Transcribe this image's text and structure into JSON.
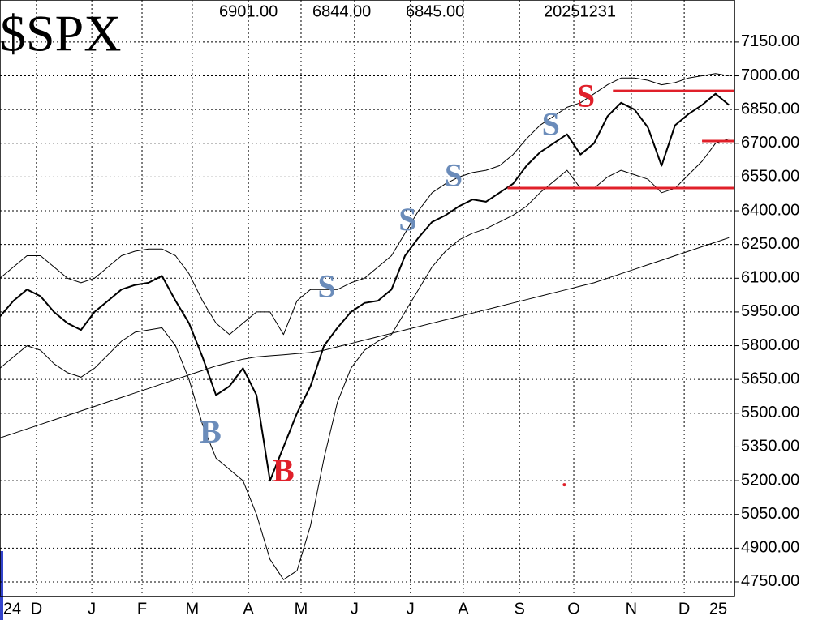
{
  "chart_data": {
    "type": "line",
    "title": "$SPX",
    "header_values": [
      "6901.00",
      "6844.00",
      "6845.00"
    ],
    "date": "20251231",
    "x": [
      0,
      5,
      10,
      15,
      20,
      25,
      30,
      35,
      40,
      45,
      50,
      55,
      60,
      65,
      70,
      75,
      80,
      85,
      90,
      95,
      100,
      105,
      110,
      115,
      120,
      125,
      130,
      135,
      140,
      145,
      150,
      155,
      160,
      165,
      170,
      175,
      180,
      185,
      190,
      195,
      200,
      205,
      210,
      215,
      220,
      225,
      230,
      235,
      240,
      245,
      250,
      255,
      260,
      265,
      270
    ],
    "xlim": [
      0,
      272
    ],
    "xticks": [
      {
        "value": 13.5,
        "label": "D"
      },
      {
        "value": 34,
        "label": "J"
      },
      {
        "value": 52.6,
        "label": "F"
      },
      {
        "value": 71.2,
        "label": "M"
      },
      {
        "value": 92,
        "label": "A"
      },
      {
        "value": 111.5,
        "label": "M"
      },
      {
        "value": 131.3,
        "label": "J"
      },
      {
        "value": 152,
        "label": "J"
      },
      {
        "value": 171.6,
        "label": "A"
      },
      {
        "value": 192.4,
        "label": "S"
      },
      {
        "value": 212.5,
        "label": "O"
      },
      {
        "value": 233.8,
        "label": "N"
      },
      {
        "value": 253.4,
        "label": "D"
      }
    ],
    "year_labels": [
      {
        "value": 4.5,
        "label": "24"
      },
      {
        "value": 266,
        "label": "25"
      }
    ],
    "ylim": [
      4685,
      7337
    ],
    "yticks": [
      {
        "value": 4750,
        "label": "4750.00"
      },
      {
        "value": 4900,
        "label": "4900.00"
      },
      {
        "value": 5050,
        "label": "5050.00"
      },
      {
        "value": 5200,
        "label": "5200.00"
      },
      {
        "value": 5350,
        "label": "5350.00"
      },
      {
        "value": 5500,
        "label": "5500.00"
      },
      {
        "value": 5650,
        "label": "5650.00"
      },
      {
        "value": 5800,
        "label": "5800.00"
      },
      {
        "value": 5950,
        "label": "5950.00"
      },
      {
        "value": 6100,
        "label": "6100.00"
      },
      {
        "value": 6250,
        "label": "6250.00"
      },
      {
        "value": 6400,
        "label": "6400.00"
      },
      {
        "value": 6550,
        "label": "6550.00"
      },
      {
        "value": 6700,
        "label": "6700.00"
      },
      {
        "value": 6850,
        "label": "6850.00"
      },
      {
        "value": 7000,
        "label": "7000.00"
      },
      {
        "value": 7150,
        "label": "7150.00"
      }
    ],
    "grid": true,
    "series": [
      {
        "color": "#000000",
        "width": 2,
        "values": [
          5930,
          6000,
          6050,
          6020,
          5950,
          5900,
          5870,
          5950,
          6000,
          6050,
          6070,
          6080,
          6110,
          6000,
          5900,
          5750,
          5580,
          5620,
          5700,
          5580,
          5200,
          5350,
          5500,
          5620,
          5800,
          5880,
          5950,
          5990,
          6000,
          6050,
          6200,
          6280,
          6350,
          6380,
          6420,
          6450,
          6440,
          6480,
          6520,
          6600,
          6660,
          6700,
          6740,
          6650,
          6700,
          6820,
          6880,
          6850,
          6770,
          6600,
          6780,
          6830,
          6870,
          6920,
          6870
        ]
      },
      {
        "color": "#000000",
        "width": 1,
        "values": [
          6100,
          6150,
          6200,
          6200,
          6150,
          6100,
          6080,
          6100,
          6150,
          6200,
          6220,
          6230,
          6230,
          6200,
          6120,
          6000,
          5900,
          5850,
          5900,
          5950,
          5950,
          5850,
          6000,
          6050,
          6050,
          6050,
          6080,
          6100,
          6150,
          6200,
          6300,
          6400,
          6480,
          6520,
          6550,
          6570,
          6580,
          6600,
          6650,
          6720,
          6780,
          6820,
          6860,
          6880,
          6920,
          6960,
          6990,
          6990,
          6980,
          6960,
          6970,
          6990,
          7000,
          7010,
          7000
        ]
      },
      {
        "color": "#000000",
        "width": 1,
        "values": [
          5700,
          5750,
          5800,
          5780,
          5720,
          5680,
          5660,
          5700,
          5760,
          5820,
          5860,
          5870,
          5880,
          5800,
          5650,
          5450,
          5300,
          5250,
          5200,
          5050,
          4850,
          4760,
          4800,
          5000,
          5300,
          5550,
          5700,
          5780,
          5820,
          5850,
          5950,
          6050,
          6150,
          6220,
          6270,
          6300,
          6320,
          6350,
          6380,
          6420,
          6480,
          6530,
          6580,
          6500,
          6500,
          6550,
          6580,
          6560,
          6540,
          6480,
          6500,
          6560,
          6620,
          6700,
          6720
        ]
      },
      {
        "color": "#000000",
        "width": 1,
        "values": [
          5390,
          5410,
          5430,
          5450,
          5470,
          5490,
          5510,
          5530,
          5550,
          5570,
          5590,
          5610,
          5630,
          5650,
          5670,
          5690,
          5710,
          5725,
          5740,
          5750,
          5755,
          5760,
          5765,
          5770,
          5780,
          5795,
          5810,
          5825,
          5840,
          5855,
          5870,
          5885,
          5900,
          5915,
          5930,
          5945,
          5960,
          5975,
          5990,
          6005,
          6020,
          6035,
          6050,
          6065,
          6080,
          6100,
          6120,
          6140,
          6160,
          6180,
          6200,
          6220,
          6240,
          6260,
          6280
        ]
      }
    ],
    "annotations": [
      {
        "text": "B",
        "x": 78,
        "y": 5402,
        "color": "#6b8cba"
      },
      {
        "text": "B",
        "x": 105,
        "y": 5229,
        "color": "#e0202a"
      },
      {
        "text": "S",
        "x": 121,
        "y": 6050,
        "color": "#6b8cba"
      },
      {
        "text": "S",
        "x": 151,
        "y": 6346,
        "color": "#6b8cba"
      },
      {
        "text": "S",
        "x": 168,
        "y": 6544,
        "color": "#6b8cba"
      },
      {
        "text": "S",
        "x": 204,
        "y": 6771,
        "color": "#6b8cba"
      },
      {
        "text": "S",
        "x": 217,
        "y": 6897,
        "color": "#e0202a"
      }
    ],
    "hlines": [
      {
        "y": 6933,
        "x1": 227,
        "x2": 272,
        "color": "#e0202a"
      },
      {
        "y": 6710,
        "x1": 260,
        "x2": 272,
        "color": "#e0202a"
      },
      {
        "y": 6501,
        "x1": 188,
        "x2": 272,
        "color": "#e0202a"
      }
    ],
    "markers": [
      {
        "x": 209,
        "y": 5182,
        "color": "#e0202a"
      }
    ]
  }
}
